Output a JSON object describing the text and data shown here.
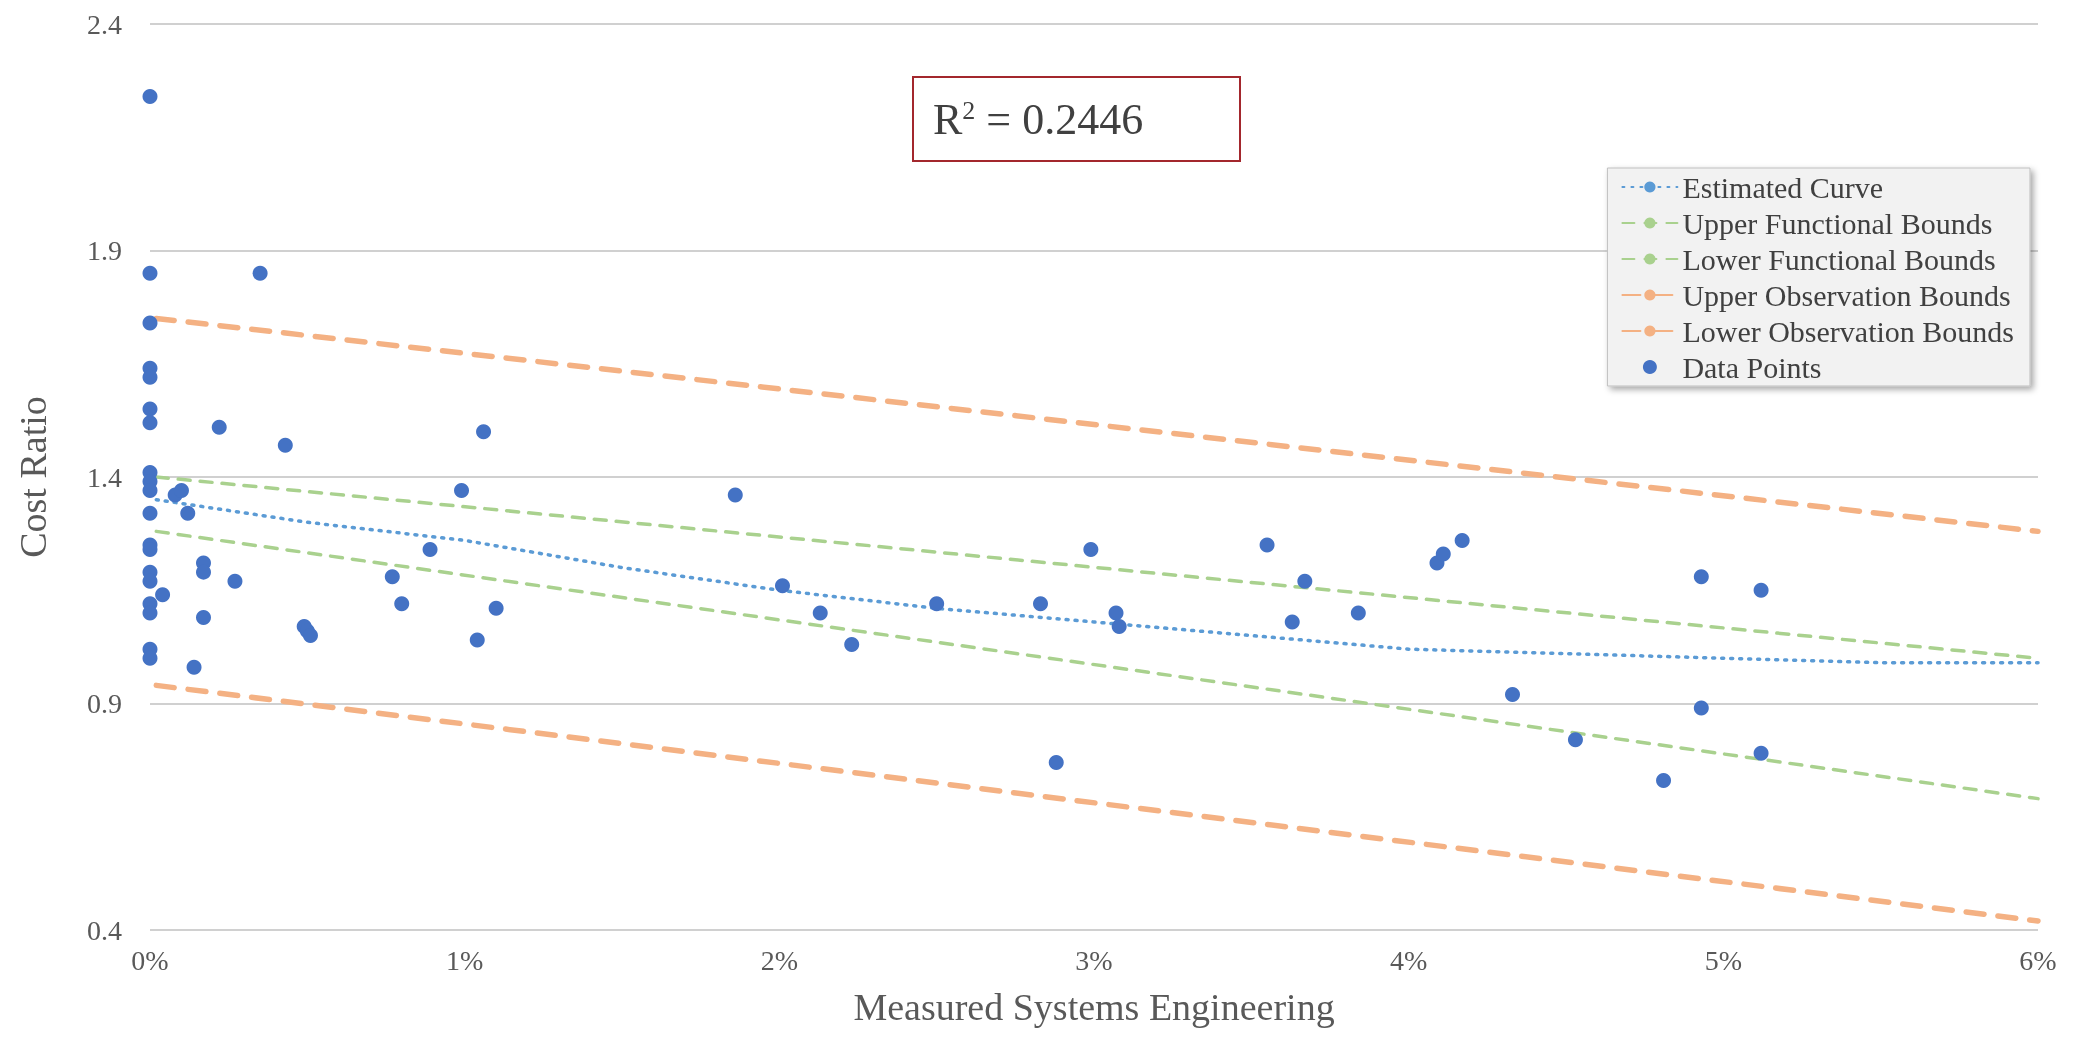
{
  "chart_data": {
    "type": "scatter",
    "xlabel": "Measured Systems Engineering",
    "ylabel": "Cost Ratio",
    "annotations": [
      "R$^{2}$ = 0.2446"
    ],
    "xlim": [
      0,
      6
    ],
    "ylim": [
      0.4,
      2.4
    ],
    "xticks": [
      {
        "value": 0,
        "label": "0%"
      },
      {
        "value": 1,
        "label": "1%"
      },
      {
        "value": 2,
        "label": "2%"
      },
      {
        "value": 3,
        "label": "3%"
      },
      {
        "value": 4,
        "label": "4%"
      },
      {
        "value": 5,
        "label": "5%"
      },
      {
        "value": 6,
        "label": "6%"
      }
    ],
    "yticks": [
      0.4,
      0.9,
      1.4,
      1.9,
      2.4
    ],
    "grid": "y",
    "legend": "top right",
    "series": [
      {
        "name": "Estimated Curve",
        "type": "line",
        "marker": "none",
        "line_style": "dotted",
        "color": "#5b9bd5",
        "x": [
          0.02,
          0.5,
          1,
          1.5,
          2,
          2.5,
          3,
          3.5,
          4,
          4.5,
          5,
          5.5,
          6
        ],
        "values": [
          1.35,
          1.3,
          1.26,
          1.2,
          1.15,
          1.11,
          1.08,
          1.05,
          1.02,
          1.01,
          1.0,
          0.99,
          0.99
        ]
      },
      {
        "name": "Upper Functional Bounds",
        "type": "line",
        "marker": "none",
        "line_style": "dashed",
        "color": "#a9d18e",
        "x": [
          0.02,
          6
        ],
        "values": [
          1.4,
          1.0
        ]
      },
      {
        "name": "Lower Functional Bounds",
        "type": "line",
        "marker": "none",
        "line_style": "dashed",
        "color": "#a9d18e",
        "x": [
          0.02,
          6
        ],
        "values": [
          1.28,
          0.69
        ]
      },
      {
        "name": "Upper Observation Bounds",
        "type": "line",
        "marker": "none",
        "line_style": "dashed",
        "color": "#f4b183",
        "x": [
          0.02,
          6
        ],
        "values": [
          1.75,
          1.28
        ]
      },
      {
        "name": "Lower Observation Bounds",
        "type": "line",
        "marker": "none",
        "line_style": "dashed",
        "color": "#f4b183",
        "x": [
          0.02,
          6
        ],
        "values": [
          0.94,
          0.42
        ]
      },
      {
        "name": "Data Points",
        "marker": "circle",
        "color": "#4472c4",
        "x": [
          0,
          0,
          0,
          0,
          0,
          0,
          0,
          0,
          0,
          0,
          0,
          0,
          0,
          0,
          0,
          0,
          0,
          0,
          0,
          0.04,
          0.08,
          0.1,
          0.12,
          0.14,
          0.17,
          0.17,
          0.17,
          0.22,
          0.27,
          0.35,
          0.43,
          0.49,
          0.5,
          0.51,
          0.77,
          0.8,
          0.89,
          0.99,
          1.04,
          1.06,
          1.1,
          1.86,
          2.01,
          2.13,
          2.23,
          2.5,
          2.83,
          2.88,
          2.99,
          3.07,
          3.08,
          3.55,
          3.63,
          3.67,
          3.84,
          4.09,
          4.11,
          4.17,
          4.33,
          4.53,
          4.81,
          4.93,
          4.93,
          5.12,
          5.12
        ],
        "values": [
          2.24,
          1.85,
          1.74,
          1.64,
          1.62,
          1.55,
          1.52,
          1.41,
          1.39,
          1.37,
          1.32,
          1.25,
          1.24,
          1.19,
          1.17,
          1.12,
          1.1,
          1.02,
          1.0,
          1.14,
          1.36,
          1.37,
          1.32,
          0.98,
          1.21,
          1.19,
          1.09,
          1.51,
          1.17,
          1.85,
          1.47,
          1.07,
          1.06,
          1.05,
          1.18,
          1.12,
          1.24,
          1.37,
          1.04,
          1.5,
          1.11,
          1.36,
          1.16,
          1.1,
          1.03,
          1.12,
          1.12,
          0.77,
          1.24,
          1.1,
          1.07,
          1.25,
          1.08,
          1.17,
          1.1,
          1.21,
          1.23,
          1.26,
          0.92,
          0.82,
          0.73,
          0.89,
          1.18,
          0.79,
          1.15
        ]
      }
    ]
  }
}
